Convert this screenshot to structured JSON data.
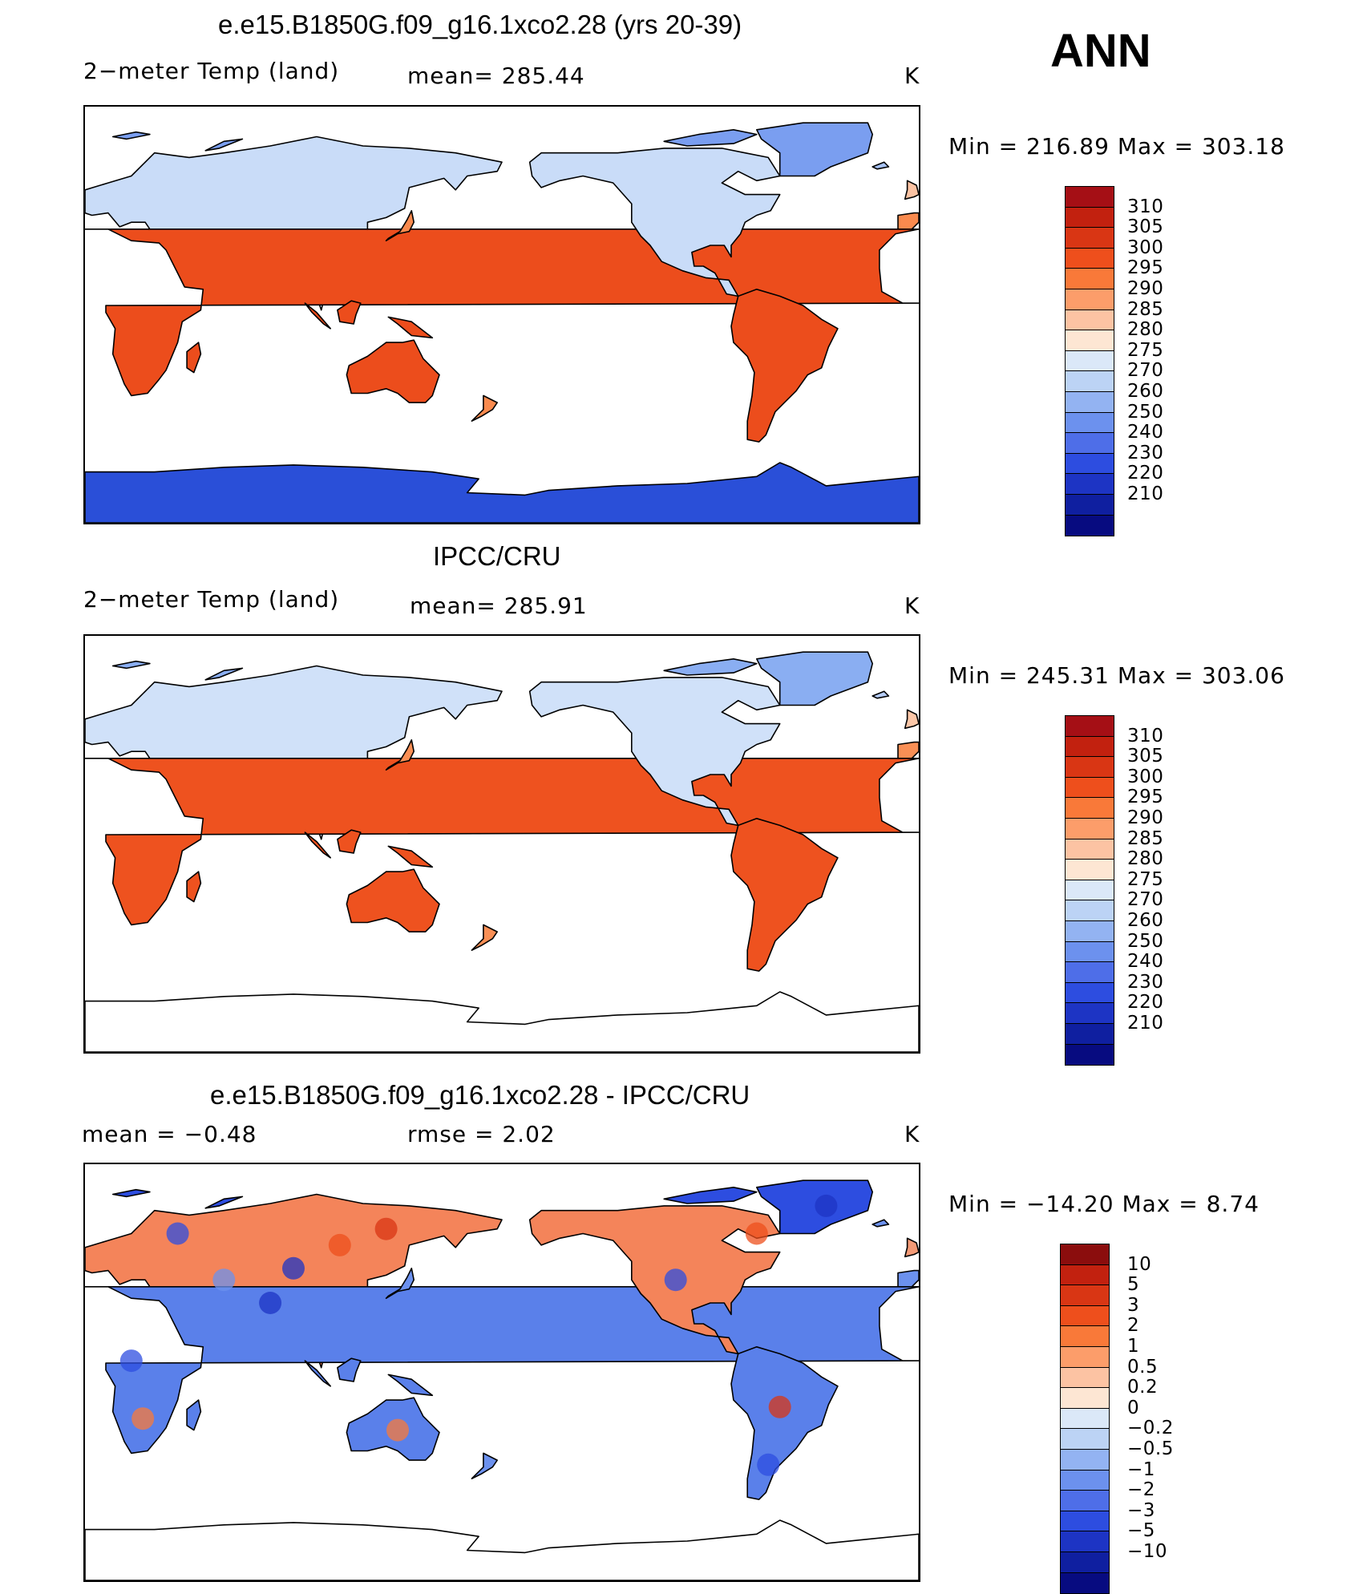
{
  "season": "ANN",
  "palette_temp": [
    "#a50f15",
    "#c2210f",
    "#d93614",
    "#ee4f1c",
    "#f97939",
    "#fc9d6a",
    "#fcc3a3",
    "#fde6d3",
    "#dbe8f8",
    "#bcd3f5",
    "#93b3f2",
    "#6c91ee",
    "#4e6ee8",
    "#2d4de0",
    "#1d34c4",
    "#0f1fa0",
    "#070b80"
  ],
  "palette_diff": [
    "#8b0d0d",
    "#c2210f",
    "#d93614",
    "#ee4f1c",
    "#f97939",
    "#fc9d6a",
    "#fcc3a3",
    "#fde6d3",
    "#dbe8f8",
    "#bcd3f5",
    "#93b3f2",
    "#6c91ee",
    "#4e6ee8",
    "#2d4de0",
    "#1d34c4",
    "#0f1fa0",
    "#070b80"
  ],
  "panels": [
    {
      "title": "e.e15.B1850G.f09_g16.1xco2.28 (yrs 20-39)",
      "left_label": "2−meter Temp (land)",
      "mid_label": "mean=  285.44",
      "units": "K",
      "minmax": "Min  =  216.89  Max  =  303.18",
      "levels": [
        "310",
        "305",
        "300",
        "295",
        "290",
        "285",
        "280",
        "275",
        "270",
        "260",
        "250",
        "240",
        "230",
        "220",
        "210"
      ],
      "antarctica": true
    },
    {
      "title": "IPCC/CRU",
      "left_label": "2−meter Temp (land)",
      "mid_label": "mean=  285.91",
      "units": "K",
      "minmax": "Min  =  245.31  Max  =  303.06",
      "levels": [
        "310",
        "305",
        "300",
        "295",
        "290",
        "285",
        "280",
        "275",
        "270",
        "260",
        "250",
        "240",
        "230",
        "220",
        "210"
      ],
      "antarctica": false
    },
    {
      "title": "e.e15.B1850G.f09_g16.1xco2.28 - IPCC/CRU",
      "left_label": "mean  =     −0.48",
      "mid_label": "rmse  =     2.02",
      "units": "K",
      "minmax": "Min  =  −14.20  Max  =      8.74",
      "levels": [
        "10",
        "5",
        "3",
        "2",
        "1",
        "0.5",
        "0.2",
        "0",
        "−0.2",
        "−0.5",
        "−1",
        "−2",
        "−3",
        "−5",
        "−10"
      ],
      "antarctica": false
    }
  ]
}
